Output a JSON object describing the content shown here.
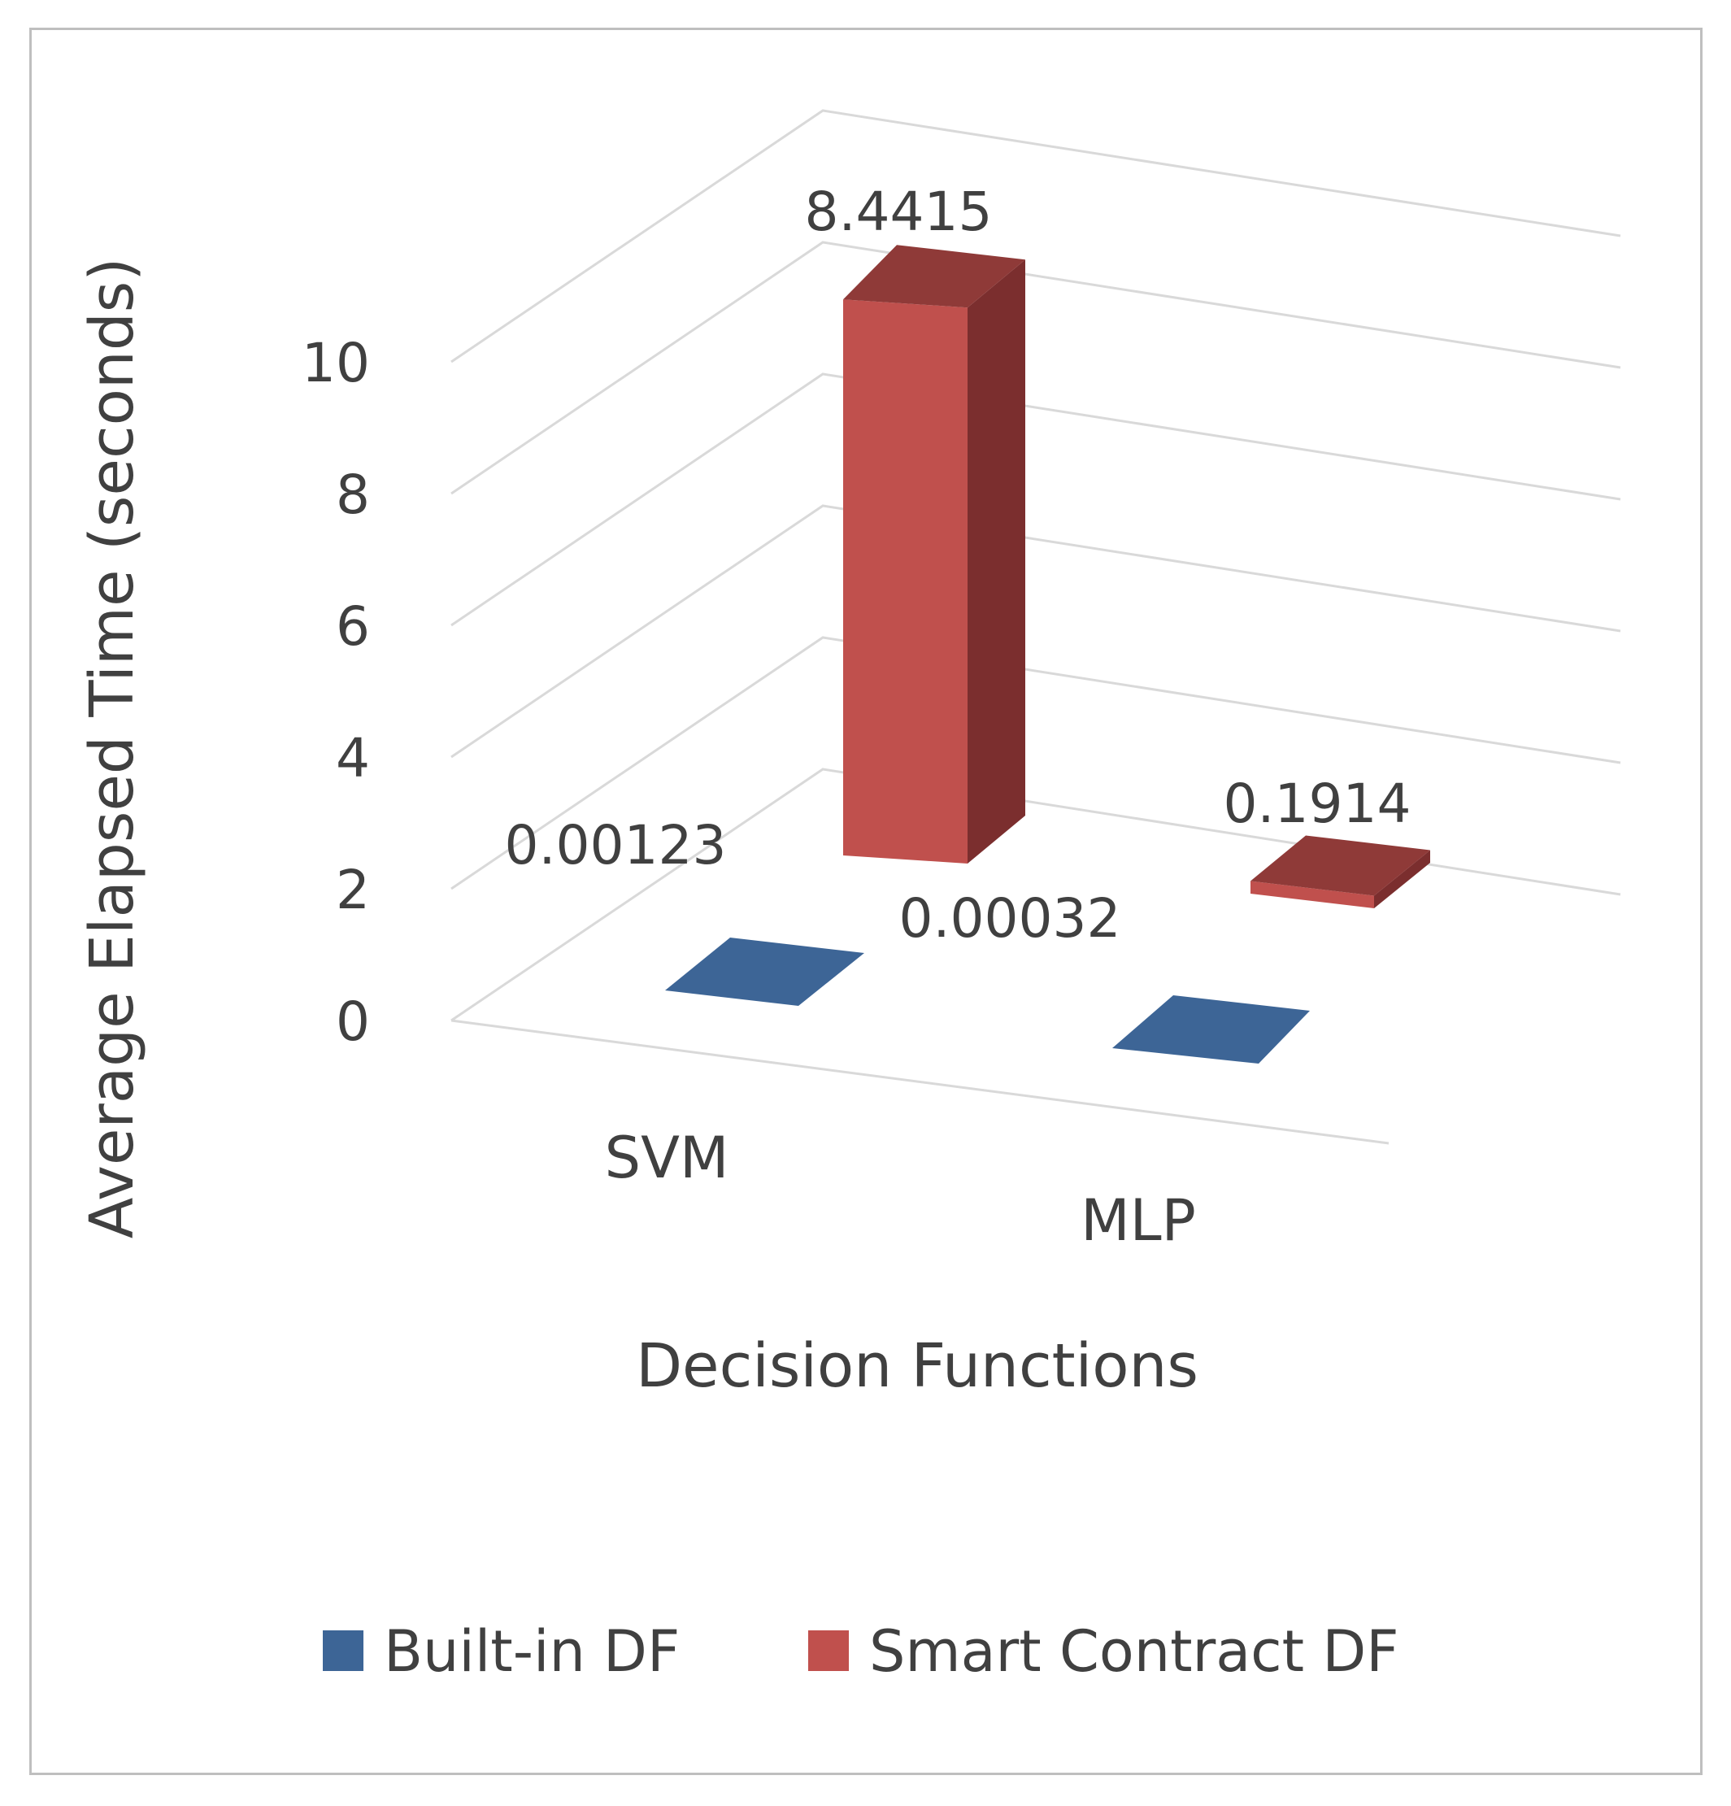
{
  "chart_data": {
    "type": "bar",
    "title": "",
    "xlabel": "Decision Functions",
    "ylabel": "Average Elapsed Time (seconds)",
    "categories": [
      "SVM",
      "MLP"
    ],
    "series": [
      {
        "name": "Built-in DF",
        "values": [
          0.00123,
          0.00032
        ],
        "labels": [
          "0.00123",
          "0.00032"
        ],
        "color": "#3d6596"
      },
      {
        "name": "Smart Contract DF",
        "values": [
          8.4415,
          0.1914
        ],
        "labels": [
          "8.4415",
          "0.1914"
        ],
        "color": "#c0504d"
      }
    ],
    "ylim": [
      0,
      10
    ],
    "yticks": [
      0,
      2,
      4,
      6,
      8,
      10
    ],
    "ytick_labels": [
      "0",
      "2",
      "4",
      "6",
      "8",
      "10"
    ],
    "grid": true,
    "legend_position": "bottom",
    "projection": "3d"
  },
  "colors": {
    "blue_top": "#3d6596",
    "red_front": "#c0504d",
    "red_top": "#8f3a38",
    "red_side": "#7b2e2e",
    "grid": "#d9d9d9",
    "text": "#404040"
  }
}
